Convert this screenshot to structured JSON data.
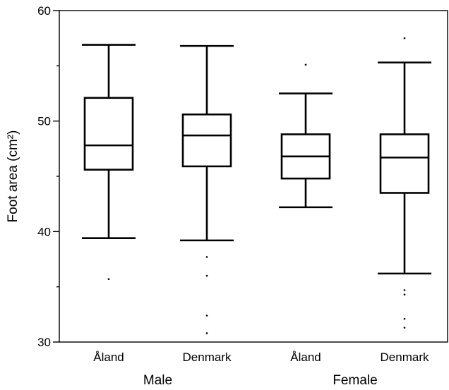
{
  "chart_data": {
    "type": "boxplot",
    "ylabel": "Foot area (cm²)",
    "ylim": [
      30,
      60
    ],
    "yticks": [
      30,
      40,
      50,
      60
    ],
    "groups": [
      {
        "label": "Male",
        "categories": [
          "Åland",
          "Denmark"
        ]
      },
      {
        "label": "Female",
        "categories": [
          "Åland",
          "Denmark"
        ]
      }
    ],
    "boxes": [
      {
        "group": "Male",
        "category": "Åland",
        "whisker_low": 39.4,
        "q1": 45.6,
        "median": 47.8,
        "q3": 52.1,
        "whisker_high": 56.9,
        "outliers": [
          35.7
        ]
      },
      {
        "group": "Male",
        "category": "Denmark",
        "whisker_low": 39.2,
        "q1": 45.9,
        "median": 48.7,
        "q3": 50.6,
        "whisker_high": 56.8,
        "outliers": [
          37.7,
          36.0,
          32.4,
          30.8
        ]
      },
      {
        "group": "Female",
        "category": "Åland",
        "whisker_low": 42.2,
        "q1": 44.8,
        "median": 46.8,
        "q3": 48.8,
        "whisker_high": 52.5,
        "outliers": [
          55.1
        ]
      },
      {
        "group": "Female",
        "category": "Denmark",
        "whisker_low": 36.2,
        "q1": 43.5,
        "median": 46.7,
        "q3": 48.8,
        "whisker_high": 55.3,
        "outliers": [
          57.5,
          34.7,
          34.3,
          32.1,
          31.3
        ]
      }
    ],
    "grid": false,
    "legend": "none"
  }
}
